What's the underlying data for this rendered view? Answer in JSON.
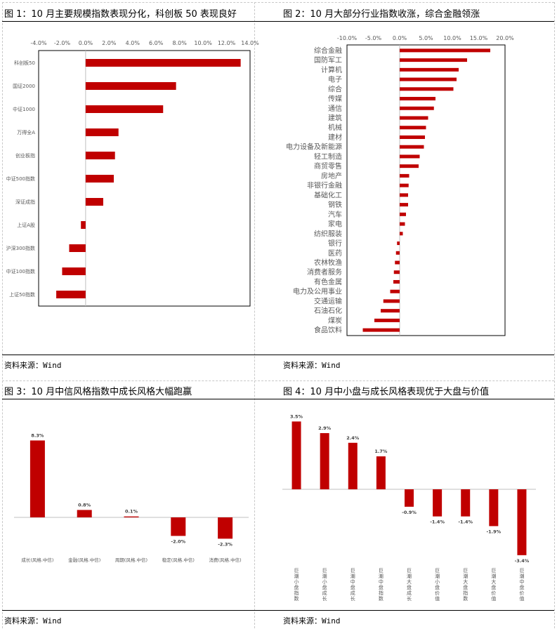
{
  "source_label": "资料来源：",
  "source_value": "Wind",
  "chart_data": [
    {
      "id": "fig1",
      "type": "bar",
      "orientation": "horizontal",
      "title": "图 1：10 月主要规模指数表现分化，科创板 50 表现良好",
      "categories": [
        "科创板50",
        "国证2000",
        "中证1000",
        "万得全A",
        "创业板指",
        "中证500指数",
        "深证成指",
        "上证A股",
        "沪深300指数",
        "中证100指数",
        "上证50指数"
      ],
      "values": [
        13.2,
        7.7,
        6.6,
        2.8,
        2.5,
        2.4,
        1.5,
        -0.4,
        -1.4,
        -2.0,
        -2.5
      ],
      "xlim": [
        -4,
        14
      ],
      "ticks": [
        "-4.0%",
        "-2.0%",
        "0.0%",
        "2.0%",
        "4.0%",
        "6.0%",
        "8.0%",
        "10.0%",
        "12.0%",
        "14.0%"
      ],
      "tick_values": [
        -4,
        -2,
        0,
        2,
        4,
        6,
        8,
        10,
        12,
        14
      ],
      "color": "#c00000",
      "source": "资料来源：Wind"
    },
    {
      "id": "fig2",
      "type": "bar",
      "orientation": "horizontal",
      "title": "图 2：10 月大部分行业指数收涨，综合金融领涨",
      "categories": [
        "综合金融",
        "国防军工",
        "计算机",
        "电子",
        "综合",
        "传媒",
        "通信",
        "建筑",
        "机械",
        "建材",
        "电力设备及新能源",
        "轻工制造",
        "商贸零售",
        "房地产",
        "非银行金融",
        "基础化工",
        "钢铁",
        "汽车",
        "家电",
        "纺织服装",
        "银行",
        "医药",
        "农林牧渔",
        "消费者服务",
        "有色金属",
        "电力及公用事业",
        "交通运输",
        "石油石化",
        "煤炭",
        "食品饮料"
      ],
      "values": [
        17.2,
        12.8,
        11.2,
        10.8,
        10.2,
        6.8,
        6.5,
        5.4,
        5.0,
        4.8,
        4.6,
        3.8,
        3.6,
        1.8,
        1.7,
        1.6,
        1.6,
        1.2,
        1.0,
        0.6,
        -0.5,
        -0.7,
        -0.9,
        -1.1,
        -1.2,
        -1.8,
        -3.1,
        -3.6,
        -4.8,
        -7.0
      ],
      "xlim": [
        -10,
        20
      ],
      "ticks": [
        "-10.0%",
        "-5.0%",
        "0.0%",
        "5.0%",
        "10.0%",
        "15.0%",
        "20.0%"
      ],
      "tick_values": [
        -10,
        -5,
        0,
        5,
        10,
        15,
        20
      ],
      "color": "#c00000",
      "source": "资料来源：Wind"
    },
    {
      "id": "fig3",
      "type": "bar",
      "orientation": "vertical",
      "title": "图 3：10 月中信风格指数中成长风格大幅跑赢",
      "categories": [
        "成长(风格.中信)",
        "金融(风格.中信)",
        "周期(风格.中信)",
        "稳定(风格.中信)",
        "消费(风格.中信)"
      ],
      "values": [
        8.3,
        0.8,
        0.1,
        -2.0,
        -2.3
      ],
      "value_labels": [
        "8.3%",
        "0.8%",
        "0.1%",
        "-2.0%",
        "-2.3%"
      ],
      "color": "#c00000",
      "source": "资料来源：Wind"
    },
    {
      "id": "fig4",
      "type": "bar",
      "orientation": "vertical",
      "title": "图 4：10 月中小盘与成长风格表现优于大盘与价值",
      "categories": [
        "巨潮小盘指数",
        "巨潮小盘成长",
        "巨潮中盘成长",
        "巨潮中盘指数",
        "巨潮大盘成长",
        "巨潮小盘价值",
        "巨潮大盘指数",
        "巨潮大盘价值",
        "巨潮中盘价值"
      ],
      "values": [
        3.5,
        2.9,
        2.4,
        1.7,
        -0.9,
        -1.4,
        -1.4,
        -1.9,
        -3.4
      ],
      "value_labels": [
        "3.5%",
        "2.9%",
        "2.4%",
        "1.7%",
        "-0.9%",
        "-1.4%",
        "-1.4%",
        "-1.9%",
        "-3.4%"
      ],
      "color": "#c00000",
      "source": "资料来源：Wind"
    }
  ]
}
